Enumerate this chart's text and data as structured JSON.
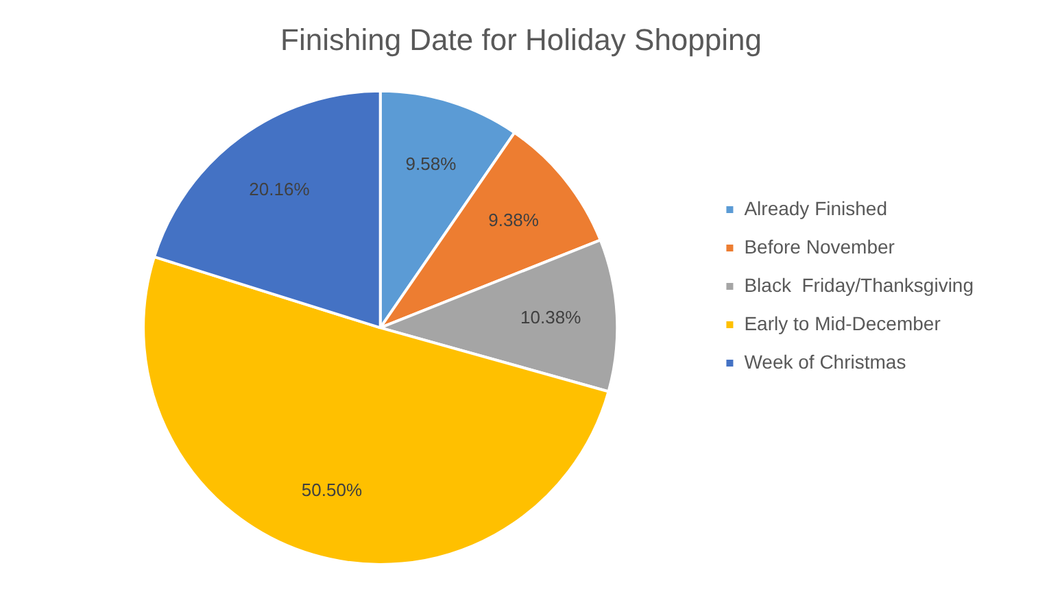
{
  "chart_data": {
    "type": "pie",
    "title": "Finishing Date for Holiday Shopping",
    "categories": [
      "Already Finished",
      "Before November",
      "Black  Friday/Thanksgiving",
      "Early to Mid-December",
      "Week of Christmas"
    ],
    "values": [
      9.58,
      9.38,
      10.38,
      50.5,
      20.16
    ],
    "colors": [
      "#5b9bd5",
      "#ed7d31",
      "#a5a5a5",
      "#ffc000",
      "#4472c4"
    ],
    "value_labels": [
      "9.58%",
      "9.38%",
      "10.38%",
      "50.50%",
      "20.16%"
    ],
    "legend": "right"
  }
}
